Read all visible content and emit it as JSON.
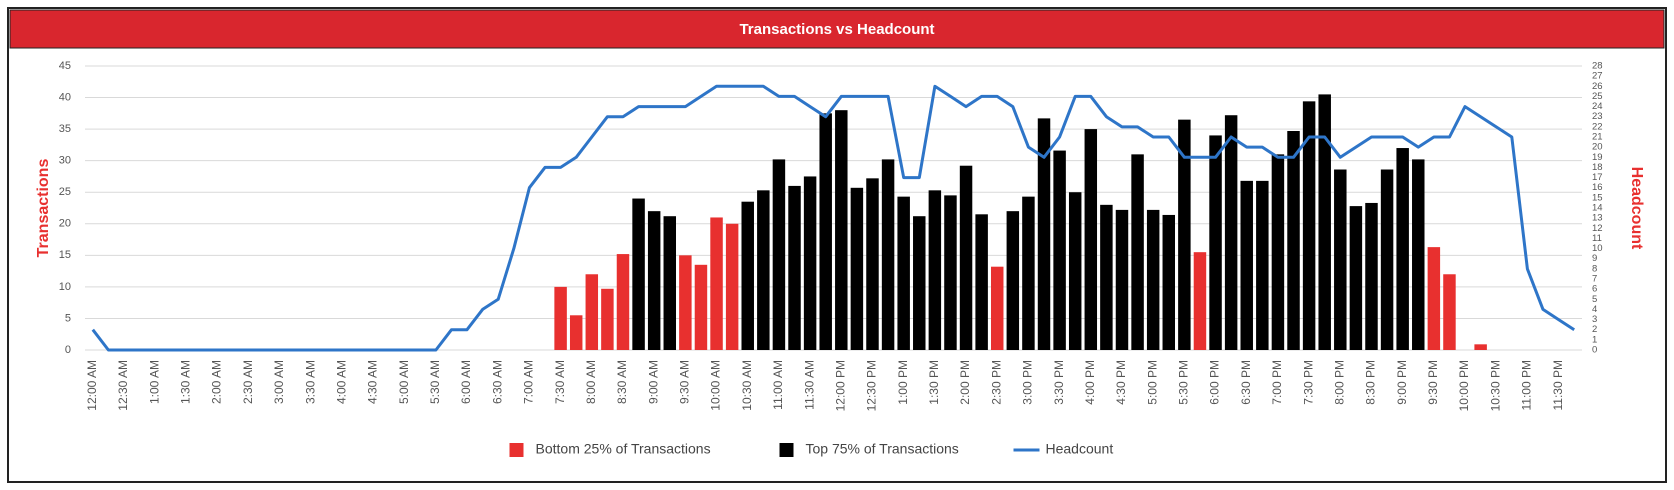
{
  "chart_data": {
    "type": "bar",
    "title": "Transactions vs Headcount",
    "ylabel": "Transactions",
    "y2label": "Headcount",
    "categories": [
      "12:00 AM",
      null,
      "12:30 AM",
      null,
      "1:00 AM",
      null,
      "1:30 AM",
      null,
      "2:00 AM",
      null,
      "2:30 AM",
      null,
      "3:00 AM",
      null,
      "3:30 AM",
      null,
      "4:00 AM",
      null,
      "4:30 AM",
      null,
      "5:00 AM",
      null,
      "5:30 AM",
      null,
      "6:00 AM",
      null,
      "6:30 AM",
      null,
      "7:00 AM",
      null,
      "7:30 AM",
      null,
      "8:00 AM",
      null,
      "8:30 AM",
      null,
      "9:00 AM",
      null,
      "9:30 AM",
      null,
      "10:00 AM",
      null,
      "10:30 AM",
      null,
      "11:00 AM",
      null,
      "11:30 AM",
      null,
      "12:00 PM",
      null,
      "12:30 PM",
      null,
      "1:00 PM",
      null,
      "1:30 PM",
      null,
      "2:00 PM",
      null,
      "2:30 PM",
      null,
      "3:00 PM",
      null,
      "3:30 PM",
      null,
      "4:00 PM",
      null,
      "4:30 PM",
      null,
      "5:00 PM",
      null,
      "5:30 PM",
      null,
      "6:00 PM",
      null,
      "6:30 PM",
      null,
      "7:00 PM",
      null,
      "7:30 PM",
      null,
      "8:00 PM",
      null,
      "8:30 PM",
      null,
      "9:00 PM",
      null,
      "9:30 PM",
      null,
      "10:00 PM",
      null,
      "10:30 PM",
      null,
      "11:00 PM",
      null,
      "11:30 PM",
      null
    ],
    "series": [
      {
        "name": "Bottom 25% of Transactions",
        "type": "bar",
        "color": "#e8302f",
        "values": [
          null,
          null,
          null,
          null,
          null,
          null,
          null,
          null,
          null,
          null,
          null,
          null,
          null,
          null,
          null,
          null,
          null,
          null,
          null,
          null,
          null,
          null,
          null,
          null,
          null,
          null,
          null,
          null,
          null,
          null,
          10,
          5.5,
          12,
          9.7,
          15.2,
          null,
          null,
          null,
          15,
          13.5,
          21,
          20,
          null,
          null,
          null,
          null,
          null,
          null,
          null,
          null,
          null,
          null,
          null,
          null,
          null,
          null,
          null,
          null,
          13.2,
          null,
          null,
          null,
          null,
          null,
          null,
          null,
          null,
          null,
          null,
          null,
          null,
          15.5,
          null,
          null,
          null,
          null,
          null,
          null,
          null,
          null,
          null,
          null,
          null,
          null,
          null,
          null,
          16.3,
          12,
          null,
          0.9,
          null,
          null,
          null,
          null,
          null,
          null
        ]
      },
      {
        "name": "Top 75% of Transactions",
        "type": "bar",
        "color": "#000000",
        "values": [
          null,
          null,
          null,
          null,
          null,
          null,
          null,
          null,
          null,
          null,
          null,
          null,
          null,
          null,
          null,
          null,
          null,
          null,
          null,
          null,
          null,
          null,
          null,
          null,
          null,
          null,
          null,
          null,
          null,
          null,
          null,
          null,
          null,
          null,
          null,
          24,
          22,
          21.2,
          null,
          null,
          null,
          null,
          23.5,
          25.3,
          30.2,
          26,
          27.5,
          37.5,
          38,
          25.7,
          27.2,
          30.2,
          24.3,
          21.2,
          25.3,
          24.5,
          29.2,
          21.5,
          null,
          22,
          24.3,
          36.7,
          31.6,
          25,
          35,
          23,
          22.2,
          31,
          22.2,
          21.4,
          36.5,
          null,
          34,
          37.2,
          26.8,
          26.8,
          31,
          34.7,
          39.4,
          40.5,
          28.6,
          22.8,
          23.3,
          28.6,
          32,
          30.2,
          null,
          null,
          null,
          null,
          null,
          null,
          null,
          null,
          null,
          null
        ]
      },
      {
        "name": "Headcount",
        "type": "line",
        "axis": "y2",
        "color": "#2e75c8",
        "values": [
          2,
          0,
          0,
          0,
          0,
          0,
          0,
          0,
          0,
          0,
          0,
          0,
          0,
          0,
          0,
          0,
          0,
          0,
          0,
          0,
          0,
          0,
          0,
          2,
          2,
          4,
          5,
          10,
          16,
          18,
          18,
          19,
          21,
          23,
          23,
          24,
          24,
          24,
          24,
          25,
          26,
          26,
          26,
          26,
          25,
          25,
          24,
          23,
          25,
          25,
          25,
          25,
          17,
          17,
          26,
          25,
          24,
          25,
          25,
          24,
          20,
          19,
          21,
          25,
          25,
          23,
          22,
          22,
          21,
          21,
          19,
          19,
          19,
          21,
          20,
          20,
          19,
          19,
          21,
          21,
          19,
          20,
          21,
          21,
          21,
          20,
          21,
          21,
          24,
          23,
          22,
          21,
          8,
          4,
          3,
          2
        ]
      }
    ],
    "ylim": [
      0,
      45
    ],
    "yticks": [
      0,
      5,
      10,
      15,
      20,
      25,
      30,
      35,
      40,
      45
    ],
    "y2lim": [
      0,
      28
    ],
    "y2ticks": [
      0,
      1,
      2,
      3,
      4,
      5,
      6,
      7,
      8,
      9,
      10,
      11,
      12,
      13,
      14,
      15,
      16,
      17,
      18,
      19,
      20,
      21,
      22,
      23,
      24,
      25,
      26,
      27,
      28
    ],
    "grid": true,
    "legend": "bottom"
  }
}
